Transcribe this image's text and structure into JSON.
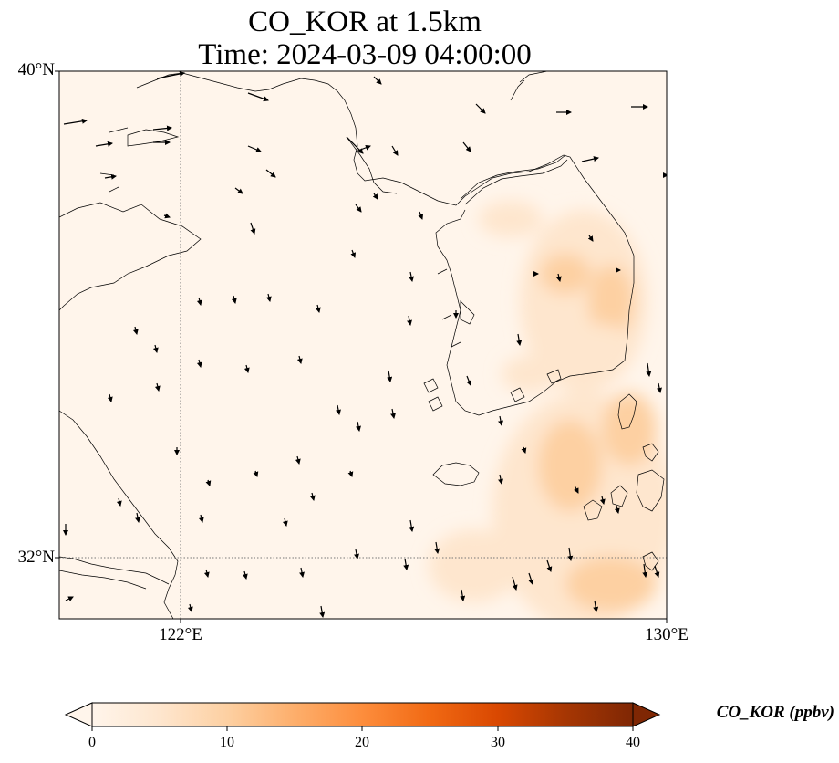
{
  "title_line1": "CO_KOR at 1.5km",
  "title_line2": "Time: 2024-03-09 04:00:00",
  "map": {
    "lat_range": [
      31.0,
      40.0
    ],
    "lon_range": [
      119.0,
      130.0
    ],
    "lat_ticks": [
      {
        "value": 32,
        "label": "32°N"
      },
      {
        "value": 40,
        "label": "40°N"
      }
    ],
    "lon_ticks": [
      {
        "value": 122,
        "label": "122°E"
      },
      {
        "value": 130,
        "label": "130°E"
      }
    ],
    "gridlines": "dotted",
    "background_color": "#fff5eb"
  },
  "colorbar": {
    "title": "CO_KOR (ppbv)",
    "min": 0,
    "max": 40,
    "extend": "both",
    "ticks": [
      {
        "value": 0,
        "label": "0"
      },
      {
        "value": 10,
        "label": "10"
      },
      {
        "value": 20,
        "label": "20"
      },
      {
        "value": 30,
        "label": "30"
      },
      {
        "value": 40,
        "label": "40"
      }
    ],
    "colormap": [
      "#fff5eb",
      "#fee6ce",
      "#fdd0a2",
      "#fdae6b",
      "#fd8d3c",
      "#f16913",
      "#d94801",
      "#a63603",
      "#7f2704"
    ]
  }
}
